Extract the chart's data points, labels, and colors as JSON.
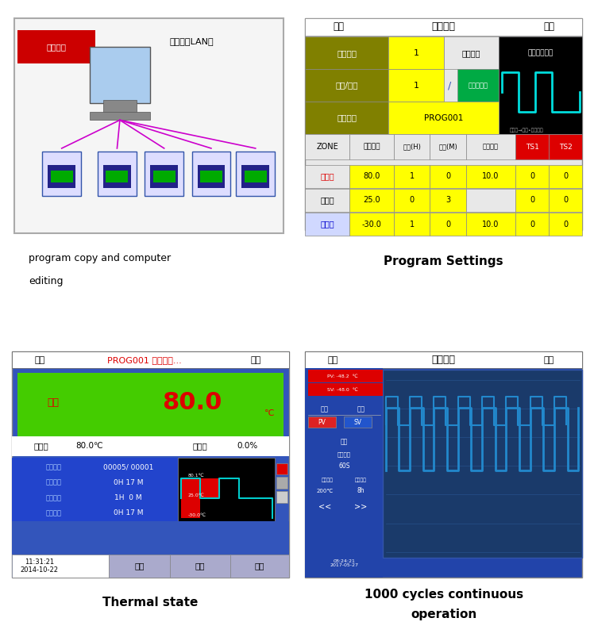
{
  "bg_color": "#ffffff",
  "panel_border": "#cccccc",
  "top_left": {
    "caption": "program copy and computer\nediting",
    "caption_bold": false,
    "network_label": "网络连接",
    "ethernet_label": "以太网（LAN）",
    "border_color": "#aaaaaa"
  },
  "top_right": {
    "caption": "Program Settings",
    "caption_bold": true,
    "title_bar_text": "程式设定",
    "menu_text": "目录",
    "switch_text": "切换",
    "header_bg": "#3355aa",
    "olive_bg": "#808000",
    "yellow_bg": "#ffff00",
    "green_bg": "#00aa00",
    "red_bg": "#dd0000",
    "gray_bg": "#cccccc",
    "black_bg": "#000000",
    "white_text": "#ffffff",
    "black_text": "#000000",
    "red_text": "#dd0000",
    "blue_text": "#0000cc"
  },
  "bot_left": {
    "caption": "Thermal state",
    "caption_bold": true,
    "header_bg": "#3355aa",
    "green_bg": "#44cc00",
    "blue_bg": "#2244cc",
    "black_bg": "#000000",
    "red_text": "#dd0000",
    "white_text": "#ffffff",
    "cyan_color": "#00cccc"
  },
  "bot_right": {
    "caption": "1000 cycles continuous\noperation",
    "caption_bold": true,
    "header_bg": "#3355aa",
    "graph_bg": "#1a3a6a",
    "cyan_color": "#00aacc",
    "white_text": "#ffffff"
  }
}
